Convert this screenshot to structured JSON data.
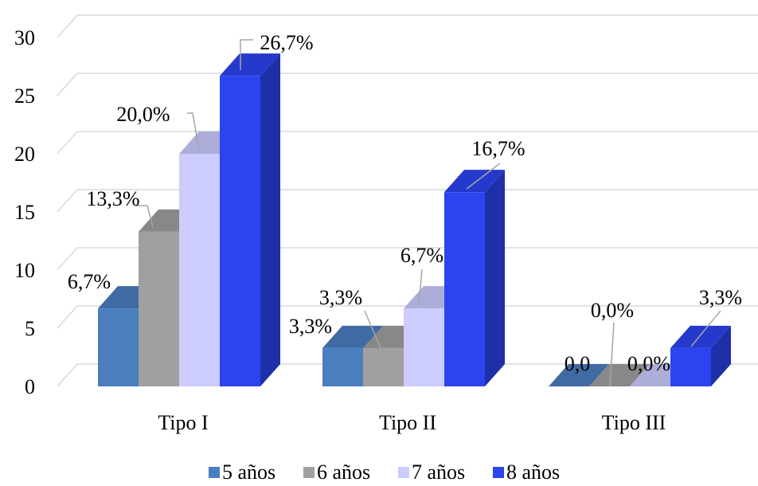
{
  "chart_data": {
    "type": "bar",
    "style": "3d-clustered-column",
    "categories": [
      "Tipo I",
      "Tipo II",
      "Tipo III"
    ],
    "series": [
      {
        "name": "5 años",
        "color": "#4A7EBF",
        "values": [
          6.7,
          3.3,
          0.0
        ],
        "labels": [
          "6,7%",
          "3,3%",
          "0,0"
        ]
      },
      {
        "name": "6 años",
        "color": "#A0A0A0",
        "values": [
          13.3,
          3.3,
          0.0
        ],
        "labels": [
          "13,3%",
          "3,3%",
          "0,0%"
        ]
      },
      {
        "name": "7 años",
        "color": "#CCCCFF",
        "values": [
          20.0,
          6.7,
          0.0
        ],
        "labels": [
          "20,0%",
          "6,7%",
          "0,0%"
        ]
      },
      {
        "name": "8 años",
        "color": "#2B44F0",
        "values": [
          26.7,
          16.7,
          3.3
        ],
        "labels": [
          "26,7%",
          "16,7%",
          "3,3%"
        ]
      }
    ],
    "yticks": [
      "0",
      "5",
      "10",
      "15",
      "20",
      "25",
      "30"
    ],
    "ylim": [
      0,
      30
    ],
    "grid": true,
    "legend_position": "bottom",
    "title": "",
    "xlabel": "",
    "ylabel": ""
  }
}
